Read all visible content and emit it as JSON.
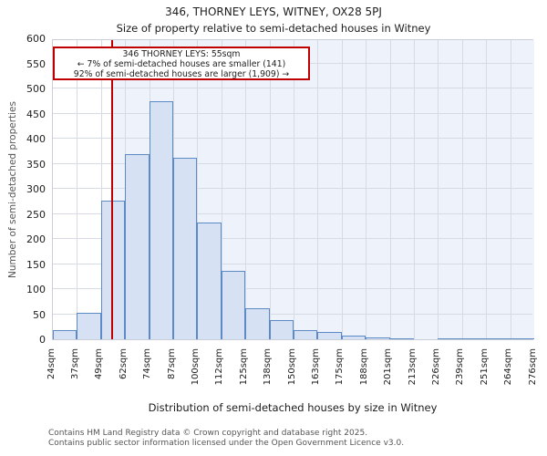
{
  "header": {
    "title": "346, THORNEY LEYS, WITNEY, OX28 5PJ",
    "subtitle": "Size of property relative to semi-detached houses in Witney"
  },
  "annotation": {
    "line1": "346 THORNEY LEYS: 55sqm",
    "line2": "← 7% of semi-detached houses are smaller (141)",
    "line3": "92% of semi-detached houses are larger (1,909) →"
  },
  "chart_data": {
    "type": "bar",
    "title": "346, THORNEY LEYS, WITNEY, OX28 5PJ — Size of property relative to semi-detached houses in Witney",
    "xlabel": "Distribution of semi-detached houses by size in Witney",
    "ylabel": "Number of semi-detached properties",
    "bin_edges_sqm": [
      24,
      37,
      49,
      62,
      74,
      87,
      100,
      112,
      125,
      138,
      150,
      163,
      175,
      188,
      201,
      213,
      226,
      239,
      251,
      264,
      276
    ],
    "tick_labels": [
      "24sqm",
      "37sqm",
      "49sqm",
      "62sqm",
      "74sqm",
      "87sqm",
      "100sqm",
      "112sqm",
      "125sqm",
      "138sqm",
      "150sqm",
      "163sqm",
      "175sqm",
      "188sqm",
      "201sqm",
      "213sqm",
      "226sqm",
      "239sqm",
      "251sqm",
      "264sqm",
      "276sqm"
    ],
    "values": [
      18,
      53,
      277,
      370,
      474,
      362,
      232,
      136,
      61,
      39,
      18,
      14,
      8,
      3,
      1,
      0,
      1,
      1,
      1,
      1
    ],
    "ylim": [
      0,
      600
    ],
    "ytick_step": 50,
    "grid": true,
    "legend": null,
    "marker_value_sqm": 55,
    "colors": {
      "bar_fill": "#d6e1f3",
      "bar_edge": "#5b8ac5",
      "marker_line": "#c00000",
      "annotation_border": "#c00000",
      "highlight_region": "#eef3fb",
      "gridline": "#d6dae3",
      "frame": "#c9ced8",
      "text": "#1c1c1c",
      "footer_text": "#555555"
    }
  },
  "footer": {
    "line1": "Contains HM Land Registry data © Crown copyright and database right 2025.",
    "line2": "Contains public sector information licensed under the Open Government Licence v3.0."
  }
}
